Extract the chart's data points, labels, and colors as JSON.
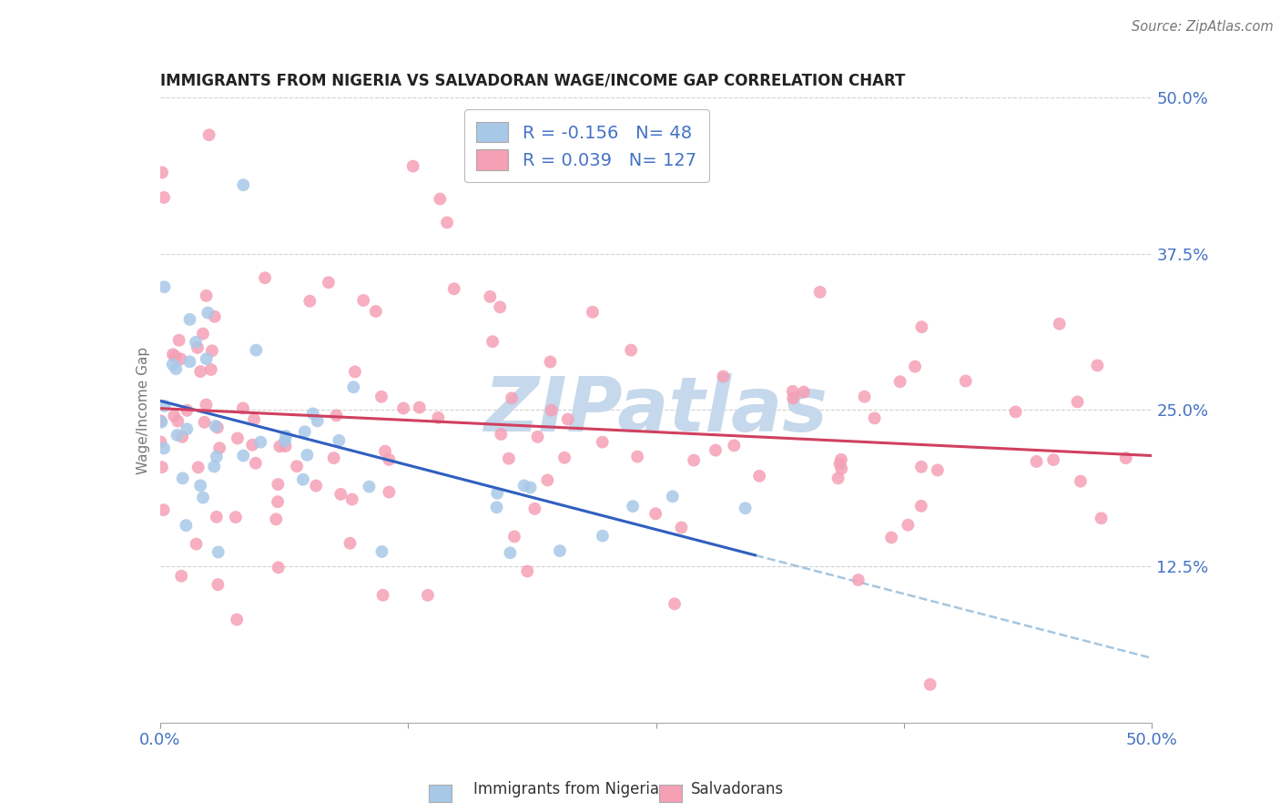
{
  "title": "IMMIGRANTS FROM NIGERIA VS SALVADORAN WAGE/INCOME GAP CORRELATION CHART",
  "source": "Source: ZipAtlas.com",
  "ylabel": "Wage/Income Gap",
  "nigeria_R": -0.156,
  "nigeria_N": 48,
  "salvador_R": 0.039,
  "salvador_N": 127,
  "nigeria_color": "#a8c8e8",
  "salvador_color": "#f5a0b5",
  "nigeria_line_color": "#3060c0",
  "salvador_line_color": "#d04060",
  "dash_line_color": "#90b8d8",
  "watermark_text": "ZIPatlas",
  "watermark_color": "#c5d8ec",
  "bg_color": "#ffffff",
  "grid_color": "#cccccc",
  "title_color": "#222222",
  "tick_label_color": "#4472c4",
  "ylabel_color": "#777777",
  "source_color": "#777777",
  "legend_text_color": "#4472c4",
  "xlim": [
    0,
    50
  ],
  "ylim": [
    0,
    50
  ],
  "y_grid_lines": [
    0,
    12.5,
    25.0,
    37.5,
    50.0
  ],
  "nigeria_seed": 7,
  "salvador_seed": 13
}
